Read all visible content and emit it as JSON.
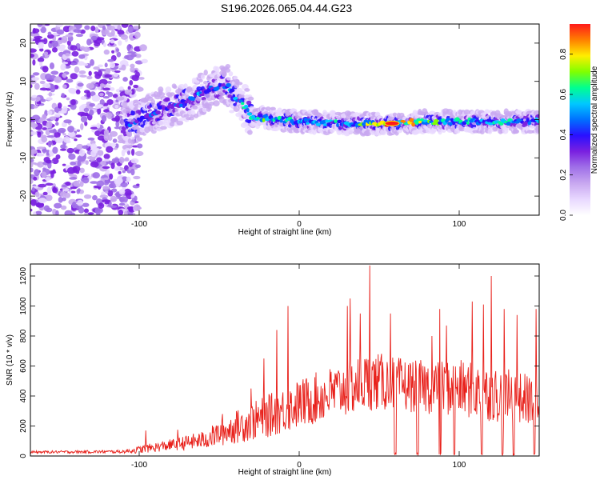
{
  "title": "S196.2026.065.04.44.G23",
  "chart_data": [
    {
      "type": "heatmap",
      "name": "spectrogram",
      "xlabel": "Height of straight line (km)",
      "ylabel": "Frequency (Hz)",
      "xlim": [
        -168,
        150
      ],
      "ylim": [
        -25,
        25
      ],
      "xticks": [
        -100,
        0,
        100
      ],
      "yticks": [
        -20,
        -10,
        0,
        10,
        20
      ],
      "colorbar": {
        "label": "Normalized spectral amplitude",
        "ticks": [
          0.0,
          0.2,
          0.4,
          0.6,
          0.8
        ],
        "range": [
          0,
          0.95
        ],
        "colors": [
          "#ffffff",
          "#e8d8ff",
          "#c8a8f0",
          "#a070e8",
          "#7a20e0",
          "#2a10ff",
          "#0070ff",
          "#00c8ff",
          "#00ff90",
          "#80ff00",
          "#ffee00",
          "#ff8000",
          "#ff1a1a"
        ]
      },
      "ridge": [
        {
          "x": -105,
          "y": -1,
          "amp": 0.45
        },
        {
          "x": -95,
          "y": 1,
          "amp": 0.5
        },
        {
          "x": -85,
          "y": 3,
          "amp": 0.45
        },
        {
          "x": -75,
          "y": 4,
          "amp": 0.5
        },
        {
          "x": -65,
          "y": 6,
          "amp": 0.5
        },
        {
          "x": -55,
          "y": 8,
          "amp": 0.5
        },
        {
          "x": -45,
          "y": 9,
          "amp": 0.5
        },
        {
          "x": -40,
          "y": 6,
          "amp": 0.55
        },
        {
          "x": -35,
          "y": 4,
          "amp": 0.6
        },
        {
          "x": -30,
          "y": 1,
          "amp": 0.6
        },
        {
          "x": -24,
          "y": 0.5,
          "amp": 0.7
        },
        {
          "x": 0,
          "y": -0.5,
          "amp": 0.55
        },
        {
          "x": 30,
          "y": -1,
          "amp": 0.6
        },
        {
          "x": 58,
          "y": -1,
          "amp": 0.95
        },
        {
          "x": 80,
          "y": -0.5,
          "amp": 0.75
        },
        {
          "x": 110,
          "y": -0.5,
          "amp": 0.6
        },
        {
          "x": 128,
          "y": -0.5,
          "amp": 0.65
        },
        {
          "x": 150,
          "y": -0.5,
          "amp": 0.55
        }
      ]
    },
    {
      "type": "line",
      "name": "snr",
      "xlabel": "Height of straight line (km)",
      "ylabel": "SNR (10 * v/v)",
      "xlim": [
        -168,
        150
      ],
      "ylim": [
        0,
        1280
      ],
      "xticks": [
        -100,
        0,
        100
      ],
      "yticks": [
        0,
        200,
        400,
        600,
        800,
        1000,
        1200
      ],
      "color": "#e8201a",
      "envelope": [
        {
          "x": -168,
          "base": 25,
          "amp": 15
        },
        {
          "x": -110,
          "base": 28,
          "amp": 20
        },
        {
          "x": -100,
          "base": 40,
          "amp": 45
        },
        {
          "x": -80,
          "base": 70,
          "amp": 70
        },
        {
          "x": -60,
          "base": 100,
          "amp": 110
        },
        {
          "x": -40,
          "base": 180,
          "amp": 200
        },
        {
          "x": -20,
          "base": 250,
          "amp": 260
        },
        {
          "x": 0,
          "base": 330,
          "amp": 300
        },
        {
          "x": 20,
          "base": 400,
          "amp": 330
        },
        {
          "x": 45,
          "base": 480,
          "amp": 360
        },
        {
          "x": 70,
          "base": 450,
          "amp": 320
        },
        {
          "x": 100,
          "base": 430,
          "amp": 350
        },
        {
          "x": 130,
          "base": 380,
          "amp": 330
        },
        {
          "x": 150,
          "base": 350,
          "amp": 300
        }
      ],
      "spikes": [
        {
          "x": -96,
          "y": 170
        },
        {
          "x": -76,
          "y": 175
        },
        {
          "x": -48,
          "y": 280
        },
        {
          "x": -30,
          "y": 450
        },
        {
          "x": -22,
          "y": 650
        },
        {
          "x": -14,
          "y": 840
        },
        {
          "x": -7,
          "y": 1000
        },
        {
          "x": 30,
          "y": 1000
        },
        {
          "x": 32,
          "y": 1050
        },
        {
          "x": 38,
          "y": 950
        },
        {
          "x": 44,
          "y": 1270
        },
        {
          "x": 57,
          "y": 950
        },
        {
          "x": 83,
          "y": 800
        },
        {
          "x": 88,
          "y": 980
        },
        {
          "x": 92,
          "y": 870
        },
        {
          "x": 108,
          "y": 1030
        },
        {
          "x": 115,
          "y": 1010
        },
        {
          "x": 120,
          "y": 1200
        },
        {
          "x": 128,
          "y": 980
        },
        {
          "x": 136,
          "y": 940
        },
        {
          "x": 148,
          "y": 980
        }
      ],
      "dropouts": [
        60,
        74,
        88,
        97,
        114,
        127,
        134,
        147
      ]
    }
  ]
}
